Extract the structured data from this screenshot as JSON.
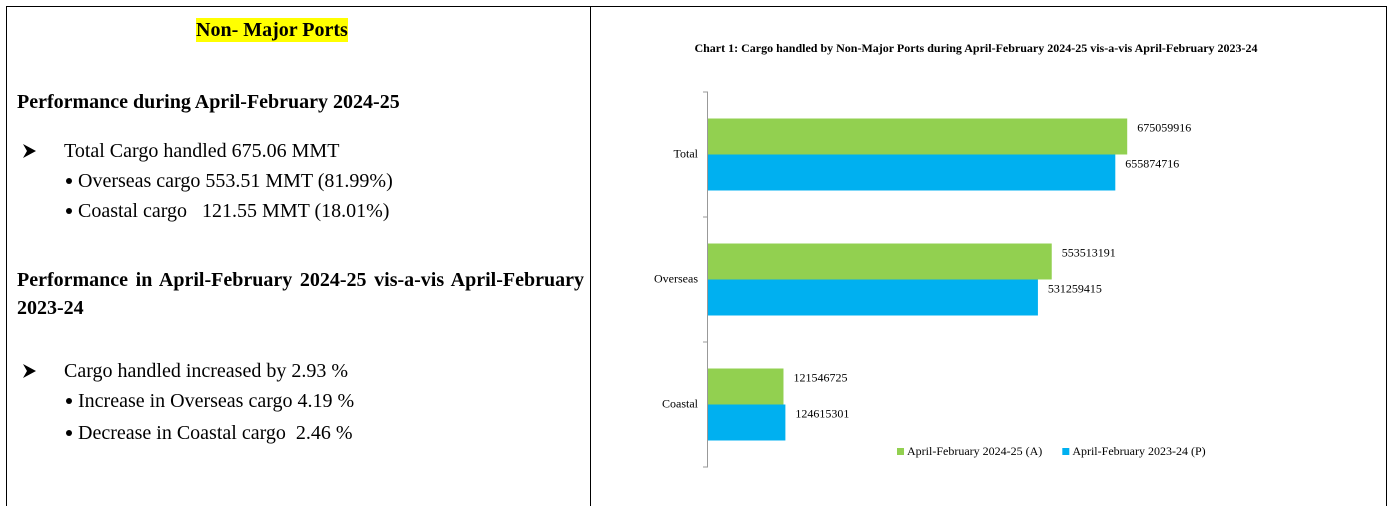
{
  "left": {
    "heading": "Non- Major Ports",
    "sections": [
      {
        "title": "Performance during April-February 2024-25",
        "point": "Total Cargo handled 675.06 MMT",
        "items": [
          "Overseas cargo 553.51 MMT (81.99%)",
          "Coastal cargo   121.55 MMT (18.01%)"
        ]
      },
      {
        "title": "Performance in April-February 2024-25 vis-a-vis April-February 2023-24",
        "point": "Cargo handled increased by 2.93 %",
        "items": [
          "Increase in Overseas cargo 4.19 %",
          "Decrease in Coastal cargo  2.46 %"
        ]
      }
    ]
  },
  "chart_data": {
    "type": "bar",
    "orientation": "horizontal",
    "title": "Chart 1: Cargo handled by Non-Major Ports during April-February 2024-25 vis-a-vis April-February 2023-24",
    "categories": [
      "Total",
      "Overseas",
      "Coastal"
    ],
    "series": [
      {
        "name": "April-February 2024-25 (A)",
        "color": "#92d050",
        "values": [
          675059916,
          553513191,
          121546725
        ]
      },
      {
        "name": "April-February 2023-24 (P)",
        "color": "#00b0f0",
        "values": [
          655874716,
          531259415,
          124615301
        ]
      }
    ],
    "xlim": [
      0,
      1000000000
    ],
    "legend": "bottom"
  }
}
